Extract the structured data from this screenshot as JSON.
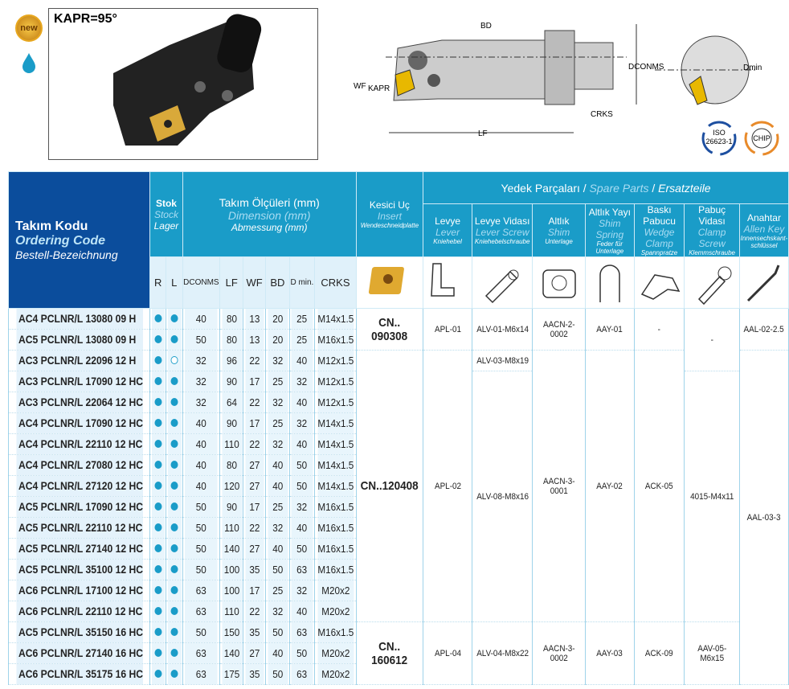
{
  "product": {
    "kapr": "KAPR=95°",
    "badge": "new",
    "coolant_icon": "water-drop-icon",
    "certs": [
      {
        "line1": "ISO",
        "line2": "26623-1"
      },
      {
        "line1": "CHIP",
        "line2": ""
      }
    ]
  },
  "diagram_labels": {
    "bd": "BD",
    "dconms": "DCONMS",
    "dmin": "Dmin",
    "wf": "WF",
    "kapr": "KAPR",
    "crks": "CRKS",
    "lf": "LF"
  },
  "colors": {
    "header": "#1a9cc8",
    "code_header": "#0b4d9c",
    "stock_dot": "#1a9cc8"
  },
  "header": {
    "code": {
      "tr": "Takım Kodu",
      "en": "Ordering Code",
      "de": "Bestell-Bezeichnung"
    },
    "stock": {
      "tr": "Stok",
      "en": "Stock",
      "de": "Lager"
    },
    "dimension": {
      "tr": "Takım Ölçüleri (mm)",
      "en": "Dimension (mm)",
      "de": "Abmessung (mm)"
    },
    "insert": {
      "tr": "Kesici Uç",
      "en": "Insert",
      "de": "Wendeschneidplatte"
    },
    "spare": {
      "tr": "Yedek Parçaları",
      "sep": "/",
      "en": "Spare Parts",
      "de": "Ersatzteile"
    },
    "parts": [
      {
        "tr": "Levye",
        "en": "Lever",
        "de": "Kniehebel",
        "icon": "lever-icon"
      },
      {
        "tr": "Levye Vidası",
        "en": "Lever Screw",
        "de": "Kniehebelschraube",
        "icon": "lever-screw-icon"
      },
      {
        "tr": "Altlık",
        "en": "Shim",
        "de": "Unterlage",
        "icon": "shim-icon"
      },
      {
        "tr": "Altlık Yayı",
        "en": "Shim Spring",
        "de": "Feder für Unterlage",
        "icon": "shim-spring-icon"
      },
      {
        "tr": "Baskı Pabucu",
        "en": "Wedge Clamp",
        "de": "Spannpratze",
        "icon": "wedge-clamp-icon"
      },
      {
        "tr": "Pabuç Vidası",
        "en": "Clamp Screw",
        "de": "Klemmschraube",
        "icon": "clamp-screw-icon"
      },
      {
        "tr": "Anahtar",
        "en": "Allen Key",
        "de": "Innensechskant-schlüssel",
        "icon": "allen-key-icon"
      }
    ],
    "cols": [
      "R",
      "L",
      "DCONMS",
      "LF",
      "WF",
      "BD",
      "D min.",
      "CRKS"
    ]
  },
  "rows": [
    {
      "code": "AC4 PCLNR/L 13080 09 H",
      "r": true,
      "l": true,
      "dims": [
        "40",
        "80",
        "13",
        "20",
        "25",
        "M14x1.5"
      ]
    },
    {
      "code": "AC5 PCLNR/L 13080 09 H",
      "r": true,
      "l": true,
      "dims": [
        "50",
        "80",
        "13",
        "20",
        "25",
        "M16x1.5"
      ]
    },
    {
      "code": "AC3 PCLNR/L 22096 12 H",
      "r": true,
      "l": false,
      "dims": [
        "32",
        "96",
        "22",
        "32",
        "40",
        "M12x1.5"
      ]
    },
    {
      "code": "AC3 PCLNR/L 17090 12 HC",
      "r": true,
      "l": true,
      "dims": [
        "32",
        "90",
        "17",
        "25",
        "32",
        "M12x1.5"
      ]
    },
    {
      "code": "AC3 PCLNR/L 22064 12 HC",
      "r": true,
      "l": true,
      "dims": [
        "32",
        "64",
        "22",
        "32",
        "40",
        "M12x1.5"
      ]
    },
    {
      "code": "AC4 PCLNR/L 17090 12 HC",
      "r": true,
      "l": true,
      "dims": [
        "40",
        "90",
        "17",
        "25",
        "32",
        "M14x1.5"
      ]
    },
    {
      "code": "AC4 PCLNR/L 22110 12 HC",
      "r": true,
      "l": true,
      "dims": [
        "40",
        "110",
        "22",
        "32",
        "40",
        "M14x1.5"
      ]
    },
    {
      "code": "AC4 PCLNR/L 27080 12 HC",
      "r": true,
      "l": true,
      "dims": [
        "40",
        "80",
        "27",
        "40",
        "50",
        "M14x1.5"
      ]
    },
    {
      "code": "AC4 PCLNR/L 27120 12 HC",
      "r": true,
      "l": true,
      "dims": [
        "40",
        "120",
        "27",
        "40",
        "50",
        "M14x1.5"
      ]
    },
    {
      "code": "AC5 PCLNR/L 17090 12 HC",
      "r": true,
      "l": true,
      "dims": [
        "50",
        "90",
        "17",
        "25",
        "32",
        "M16x1.5"
      ]
    },
    {
      "code": "AC5 PCLNR/L 22110 12 HC",
      "r": true,
      "l": true,
      "dims": [
        "50",
        "110",
        "22",
        "32",
        "40",
        "M16x1.5"
      ]
    },
    {
      "code": "AC5 PCLNR/L 27140 12 HC",
      "r": true,
      "l": true,
      "dims": [
        "50",
        "140",
        "27",
        "40",
        "50",
        "M16x1.5"
      ]
    },
    {
      "code": "AC5 PCLNR/L 35100 12 HC",
      "r": true,
      "l": true,
      "dims": [
        "50",
        "100",
        "35",
        "50",
        "63",
        "M16x1.5"
      ]
    },
    {
      "code": "AC6 PCLNR/L 17100 12 HC",
      "r": true,
      "l": true,
      "dims": [
        "63",
        "100",
        "17",
        "25",
        "32",
        "M20x2"
      ]
    },
    {
      "code": "AC6 PCLNR/L 22110 12 HC",
      "r": true,
      "l": true,
      "dims": [
        "63",
        "110",
        "22",
        "32",
        "40",
        "M20x2"
      ]
    },
    {
      "code": "AC5 PCLNR/L 35150 16 HC",
      "r": true,
      "l": true,
      "dims": [
        "50",
        "150",
        "35",
        "50",
        "63",
        "M16x1.5"
      ]
    },
    {
      "code": "AC6 PCLNR/L 27140 16 HC",
      "r": true,
      "l": true,
      "dims": [
        "63",
        "140",
        "27",
        "40",
        "50",
        "M20x2"
      ]
    },
    {
      "code": "AC6 PCLNR/L 35175 16 HC",
      "r": true,
      "l": true,
      "dims": [
        "63",
        "175",
        "35",
        "50",
        "63",
        "M20x2"
      ]
    }
  ],
  "groups": [
    {
      "name": "insert",
      "segments": [
        {
          "value": "CN.. 090308",
          "rows": 2
        },
        {
          "value": "CN..120408",
          "rows": 13
        },
        {
          "value": "CN.. 160612",
          "rows": 3
        }
      ]
    },
    {
      "name": "lever",
      "segments": [
        {
          "value": "APL-01",
          "rows": 2
        },
        {
          "value": "APL-02",
          "rows": 13
        },
        {
          "value": "APL-04",
          "rows": 3
        }
      ]
    },
    {
      "name": "lever-screw",
      "segments": [
        {
          "value": "ALV-01-M6x14",
          "rows": 2
        },
        {
          "value": "ALV-03-M8x19",
          "rows": 1
        },
        {
          "value": "ALV-08-M8x16",
          "rows": 12
        },
        {
          "value": "ALV-04-M8x22",
          "rows": 3
        }
      ]
    },
    {
      "name": "shim",
      "segments": [
        {
          "value": "AACN-2-0002",
          "rows": 2
        },
        {
          "value": "AACN-3-0001",
          "rows": 13
        },
        {
          "value": "AACN-3-0002",
          "rows": 3
        }
      ]
    },
    {
      "name": "shim-spring",
      "segments": [
        {
          "value": "AAY-01",
          "rows": 2
        },
        {
          "value": "AAY-02",
          "rows": 13
        },
        {
          "value": "AAY-03",
          "rows": 3
        }
      ]
    },
    {
      "name": "wedge-clamp",
      "segments": [
        {
          "value": "-",
          "rows": 2
        },
        {
          "value": "ACK-05",
          "rows": 13
        },
        {
          "value": "ACK-09",
          "rows": 3
        }
      ]
    },
    {
      "name": "clamp-screw",
      "segments": [
        {
          "value": "-",
          "rows": 3
        },
        {
          "value": "4015-M4x11",
          "rows": 12
        },
        {
          "value": "AAV-05-M6x15",
          "rows": 3
        }
      ]
    },
    {
      "name": "allen-key",
      "segments": [
        {
          "value": "AAL-02-2.5",
          "rows": 2
        },
        {
          "value": "AAL-03-3",
          "rows": 16
        }
      ]
    }
  ]
}
